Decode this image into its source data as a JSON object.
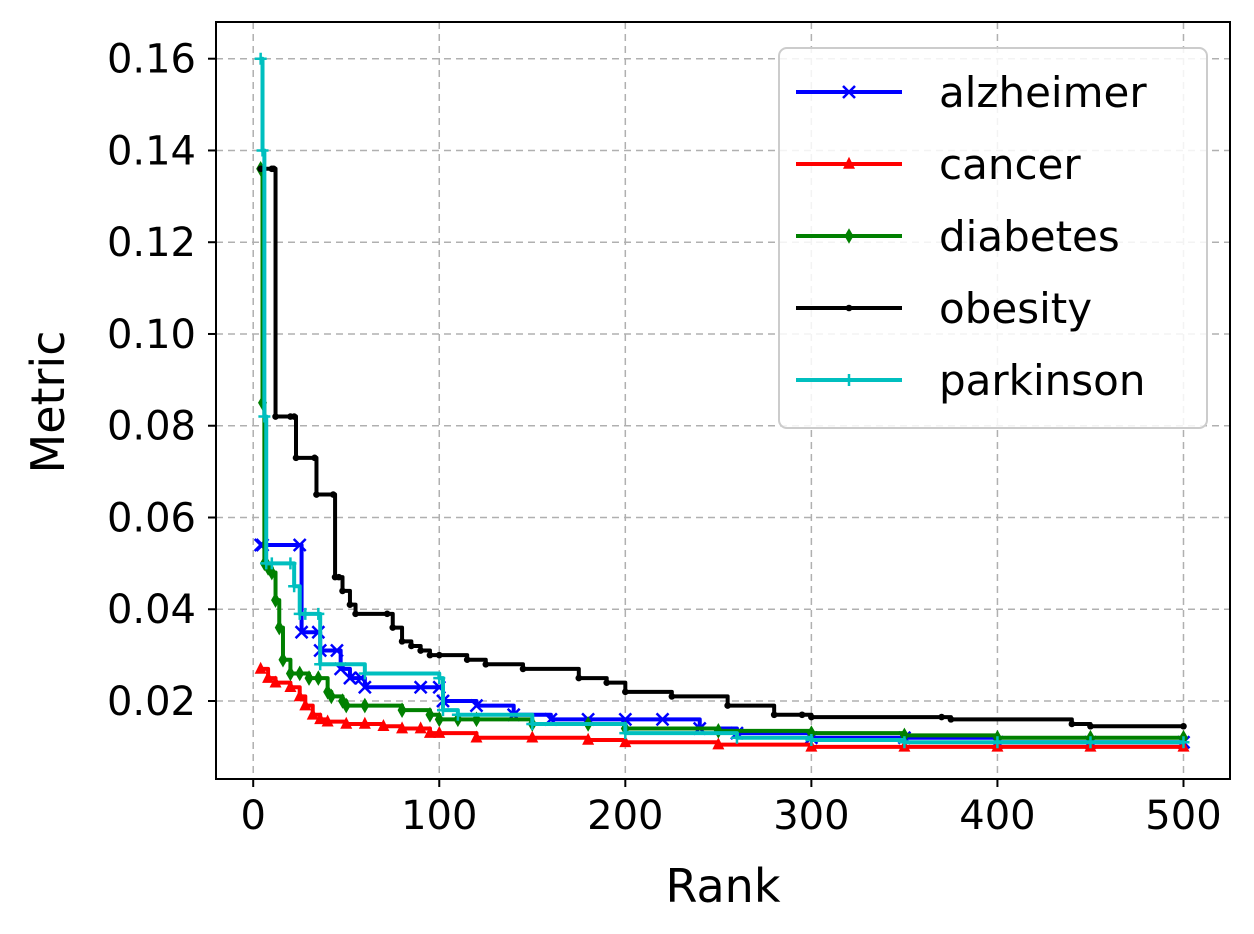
{
  "chart_data": {
    "type": "line",
    "title": "",
    "xlabel": "Rank",
    "ylabel": "Metric",
    "xlim": [
      -20,
      525
    ],
    "ylim": [
      0.003,
      0.168
    ],
    "xticks": [
      0,
      100,
      200,
      300,
      400,
      500
    ],
    "xtick_labels": [
      "0",
      "100",
      "200",
      "300",
      "400",
      "500"
    ],
    "yticks": [
      0.02,
      0.04,
      0.06,
      0.08,
      0.1,
      0.12,
      0.14,
      0.16
    ],
    "ytick_labels": [
      "0.02",
      "0.04",
      "0.06",
      "0.08",
      "0.10",
      "0.12",
      "0.14",
      "0.16"
    ],
    "grid": true,
    "legend_position": "top-right",
    "series": [
      {
        "name": "alzheimer",
        "color": "#0000ff",
        "marker": "x",
        "x": [
          4,
          5,
          25,
          26,
          35,
          36,
          45,
          47,
          52,
          58,
          60,
          90,
          100,
          102,
          120,
          140,
          160,
          180,
          200,
          220,
          240,
          260,
          300,
          350,
          400,
          450,
          500
        ],
        "y": [
          0.054,
          0.054,
          0.054,
          0.035,
          0.035,
          0.031,
          0.031,
          0.027,
          0.025,
          0.025,
          0.023,
          0.023,
          0.023,
          0.02,
          0.019,
          0.017,
          0.016,
          0.016,
          0.016,
          0.016,
          0.014,
          0.013,
          0.012,
          0.012,
          0.011,
          0.011,
          0.011
        ]
      },
      {
        "name": "cancer",
        "color": "#ff0000",
        "marker": "^",
        "x": [
          4,
          8,
          12,
          20,
          25,
          28,
          32,
          36,
          40,
          50,
          60,
          70,
          80,
          90,
          95,
          100,
          120,
          150,
          180,
          200,
          250,
          300,
          350,
          400,
          450,
          500
        ],
        "y": [
          0.027,
          0.025,
          0.024,
          0.023,
          0.021,
          0.019,
          0.017,
          0.016,
          0.0155,
          0.015,
          0.015,
          0.0145,
          0.014,
          0.014,
          0.013,
          0.013,
          0.012,
          0.012,
          0.0115,
          0.011,
          0.0105,
          0.01,
          0.01,
          0.01,
          0.01,
          0.01
        ]
      },
      {
        "name": "diabetes",
        "color": "#008000",
        "marker": "d",
        "x": [
          4,
          5,
          6,
          7,
          8,
          10,
          12,
          14,
          16,
          20,
          25,
          30,
          35,
          40,
          42,
          48,
          50,
          60,
          80,
          95,
          100,
          110,
          120,
          150,
          180,
          200,
          250,
          300,
          350,
          400,
          450,
          500
        ],
        "y": [
          0.136,
          0.085,
          0.05,
          0.05,
          0.049,
          0.048,
          0.042,
          0.036,
          0.029,
          0.026,
          0.026,
          0.025,
          0.025,
          0.022,
          0.021,
          0.02,
          0.019,
          0.019,
          0.018,
          0.017,
          0.016,
          0.016,
          0.016,
          0.015,
          0.015,
          0.014,
          0.0135,
          0.013,
          0.0125,
          0.012,
          0.012,
          0.012
        ]
      },
      {
        "name": "obesity",
        "color": "#000000",
        "marker": ".",
        "x": [
          4,
          10,
          11,
          12,
          20,
          22,
          23,
          33,
          34,
          43,
          44,
          46,
          48,
          52,
          55,
          72,
          75,
          80,
          85,
          90,
          95,
          100,
          115,
          125,
          145,
          175,
          190,
          200,
          225,
          255,
          280,
          295,
          300,
          370,
          375,
          440,
          450,
          500
        ],
        "y": [
          0.136,
          0.136,
          0.136,
          0.082,
          0.082,
          0.082,
          0.073,
          0.073,
          0.065,
          0.065,
          0.047,
          0.047,
          0.044,
          0.041,
          0.039,
          0.039,
          0.036,
          0.033,
          0.032,
          0.031,
          0.03,
          0.03,
          0.029,
          0.028,
          0.027,
          0.025,
          0.024,
          0.022,
          0.021,
          0.019,
          0.017,
          0.017,
          0.0165,
          0.0165,
          0.016,
          0.015,
          0.0145,
          0.0145
        ]
      },
      {
        "name": "parkinson",
        "color": "#00bfbf",
        "marker": "+",
        "x": [
          4,
          5,
          6,
          7,
          10,
          20,
          22,
          25,
          28,
          35,
          36,
          60,
          100,
          102,
          110,
          150,
          200,
          260,
          300,
          350,
          400,
          450,
          500
        ],
        "y": [
          0.16,
          0.14,
          0.082,
          0.05,
          0.05,
          0.05,
          0.045,
          0.039,
          0.039,
          0.039,
          0.028,
          0.026,
          0.025,
          0.018,
          0.017,
          0.015,
          0.013,
          0.012,
          0.0115,
          0.011,
          0.011,
          0.011,
          0.011
        ]
      }
    ]
  }
}
